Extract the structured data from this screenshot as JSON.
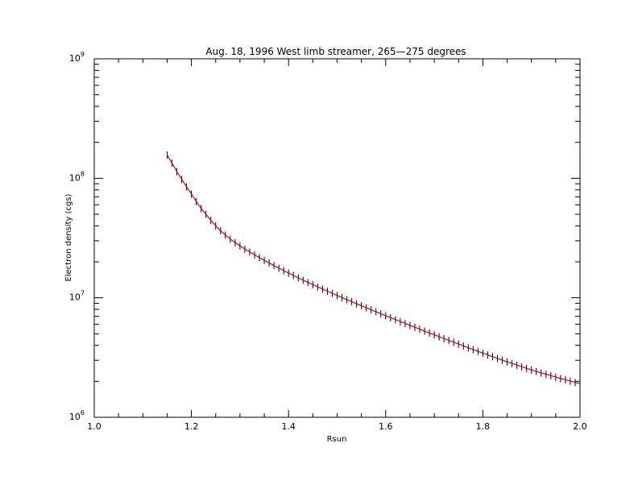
{
  "chart_data": {
    "type": "line",
    "title": "Aug. 18, 1996 West limb streamer, 265—275 degrees",
    "xlabel": "Rsun",
    "ylabel": "Electron density (cgs)",
    "xlim": [
      1.0,
      2.0
    ],
    "ylim": [
      1000000,
      1000000000
    ],
    "yscale": "log",
    "grid": false,
    "x_ticks": [
      "1.0",
      "1.2",
      "1.4",
      "1.6",
      "1.8",
      "2.0"
    ],
    "y_ticks": [
      {
        "base": "10",
        "exp": "6",
        "value": 1000000
      },
      {
        "base": "10",
        "exp": "7",
        "value": 10000000
      },
      {
        "base": "10",
        "exp": "8",
        "value": 100000000
      },
      {
        "base": "10",
        "exp": "9",
        "value": 1000000000
      }
    ],
    "colors": {
      "fit": "#cc0000",
      "data": "#000000"
    },
    "series": [
      {
        "style": "error-bars",
        "x": [
          1.15,
          1.16,
          1.17,
          1.18,
          1.19,
          1.2,
          1.21,
          1.22,
          1.23,
          1.24,
          1.25,
          1.26,
          1.27,
          1.28,
          1.29,
          1.3,
          1.31,
          1.32,
          1.33,
          1.34,
          1.35,
          1.36,
          1.37,
          1.38,
          1.39,
          1.4,
          1.41,
          1.42,
          1.43,
          1.44,
          1.45,
          1.46,
          1.47,
          1.48,
          1.49,
          1.5,
          1.51,
          1.52,
          1.53,
          1.54,
          1.55,
          1.56,
          1.57,
          1.58,
          1.59,
          1.6,
          1.61,
          1.62,
          1.63,
          1.64,
          1.65,
          1.66,
          1.67,
          1.68,
          1.69,
          1.7,
          1.71,
          1.72,
          1.73,
          1.74,
          1.75,
          1.76,
          1.77,
          1.78,
          1.79,
          1.8,
          1.81,
          1.82,
          1.83,
          1.84,
          1.85,
          1.86,
          1.87,
          1.88,
          1.89,
          1.9,
          1.91,
          1.92,
          1.93,
          1.94,
          1.95,
          1.96,
          1.97,
          1.98,
          1.99,
          2.0
        ],
        "y": [
          157000000,
          134000000,
          114000000,
          98000000,
          85000000,
          74000000,
          64000000,
          56000000,
          50000000,
          44500000,
          40000000,
          36500000,
          33500000,
          31000000,
          29000000,
          27200000,
          25600000,
          24200000,
          22900000,
          21700000,
          20600000,
          19600000,
          18600000,
          17700000,
          16900000,
          16100000,
          15400000,
          14700000,
          14050000,
          13450000,
          12900000,
          12350000,
          11850000,
          11350000,
          10900000,
          10450000,
          10050000,
          9650000,
          9280000,
          8920000,
          8580000,
          8250000,
          7940000,
          7640000,
          7360000,
          7080000,
          6820000,
          6570000,
          6330000,
          6100000,
          5880000,
          5670000,
          5470000,
          5270000,
          5080000,
          4900000,
          4730000,
          4560000,
          4400000,
          4250000,
          4100000,
          3960000,
          3820000,
          3690000,
          3560000,
          3440000,
          3330000,
          3220000,
          3110000,
          3010000,
          2910000,
          2820000,
          2730000,
          2650000,
          2570000,
          2490000,
          2420000,
          2350000,
          2290000,
          2230000,
          2170000,
          2110000,
          2060000,
          2010000,
          1960000,
          1910000
        ],
        "error_fraction": 0.07
      },
      {
        "style": "line",
        "x": [
          1.15,
          1.16,
          1.17,
          1.18,
          1.19,
          1.2,
          1.21,
          1.22,
          1.23,
          1.24,
          1.25,
          1.26,
          1.27,
          1.28,
          1.29,
          1.3,
          1.31,
          1.32,
          1.33,
          1.34,
          1.35,
          1.36,
          1.37,
          1.38,
          1.39,
          1.4,
          1.41,
          1.42,
          1.43,
          1.44,
          1.45,
          1.46,
          1.47,
          1.48,
          1.49,
          1.5,
          1.51,
          1.52,
          1.53,
          1.54,
          1.55,
          1.56,
          1.57,
          1.58,
          1.59,
          1.6,
          1.61,
          1.62,
          1.63,
          1.64,
          1.65,
          1.66,
          1.67,
          1.68,
          1.69,
          1.7,
          1.71,
          1.72,
          1.73,
          1.74,
          1.75,
          1.76,
          1.77,
          1.78,
          1.79,
          1.8,
          1.81,
          1.82,
          1.83,
          1.84,
          1.85,
          1.86,
          1.87,
          1.88,
          1.89,
          1.9,
          1.91,
          1.92,
          1.93,
          1.94,
          1.95,
          1.96,
          1.97,
          1.98,
          1.99,
          2.0
        ],
        "y": [
          157000000,
          134000000,
          114000000,
          98000000,
          85000000,
          74000000,
          64000000,
          56000000,
          50000000,
          44500000,
          40000000,
          36500000,
          33500000,
          31000000,
          29000000,
          27200000,
          25600000,
          24200000,
          22900000,
          21700000,
          20600000,
          19600000,
          18600000,
          17700000,
          16900000,
          16100000,
          15400000,
          14700000,
          14050000,
          13450000,
          12900000,
          12350000,
          11850000,
          11350000,
          10900000,
          10450000,
          10050000,
          9650000,
          9280000,
          8920000,
          8580000,
          8250000,
          7940000,
          7640000,
          7360000,
          7080000,
          6820000,
          6570000,
          6330000,
          6100000,
          5880000,
          5670000,
          5470000,
          5270000,
          5080000,
          4900000,
          4730000,
          4560000,
          4400000,
          4250000,
          4100000,
          3960000,
          3820000,
          3690000,
          3560000,
          3440000,
          3330000,
          3220000,
          3110000,
          3010000,
          2910000,
          2820000,
          2730000,
          2650000,
          2570000,
          2490000,
          2420000,
          2350000,
          2290000,
          2230000,
          2170000,
          2110000,
          2060000,
          2010000,
          1960000,
          1910000
        ]
      }
    ]
  }
}
